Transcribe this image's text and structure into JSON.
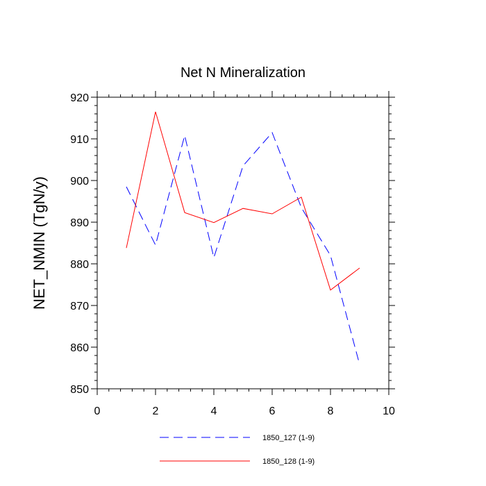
{
  "chart_data": {
    "type": "line",
    "title": "Net N Mineralization",
    "xlabel": "",
    "ylabel": "NET_NMIN  (TgN/y)",
    "xlim": [
      0,
      10
    ],
    "ylim": [
      850,
      920
    ],
    "xticks": [
      0,
      2,
      4,
      6,
      8,
      10
    ],
    "yticks": [
      850,
      860,
      870,
      880,
      890,
      900,
      910,
      920
    ],
    "x": [
      1,
      2,
      3,
      4,
      5,
      6,
      7,
      8,
      9
    ],
    "series": [
      {
        "name": "1850_127 (1-9)",
        "color": "#0000ff",
        "style": "dashed",
        "values": [
          898.5,
          884.5,
          910.8,
          881.5,
          903.5,
          911.5,
          893.5,
          882.0,
          855.8
        ]
      },
      {
        "name": "1850_128 (1-9)",
        "color": "#ff0000",
        "style": "solid",
        "values": [
          883.8,
          916.5,
          892.3,
          889.9,
          893.3,
          892.0,
          896.0,
          873.7,
          879.0
        ]
      }
    ],
    "legend_position": "bottom",
    "grid": false
  }
}
